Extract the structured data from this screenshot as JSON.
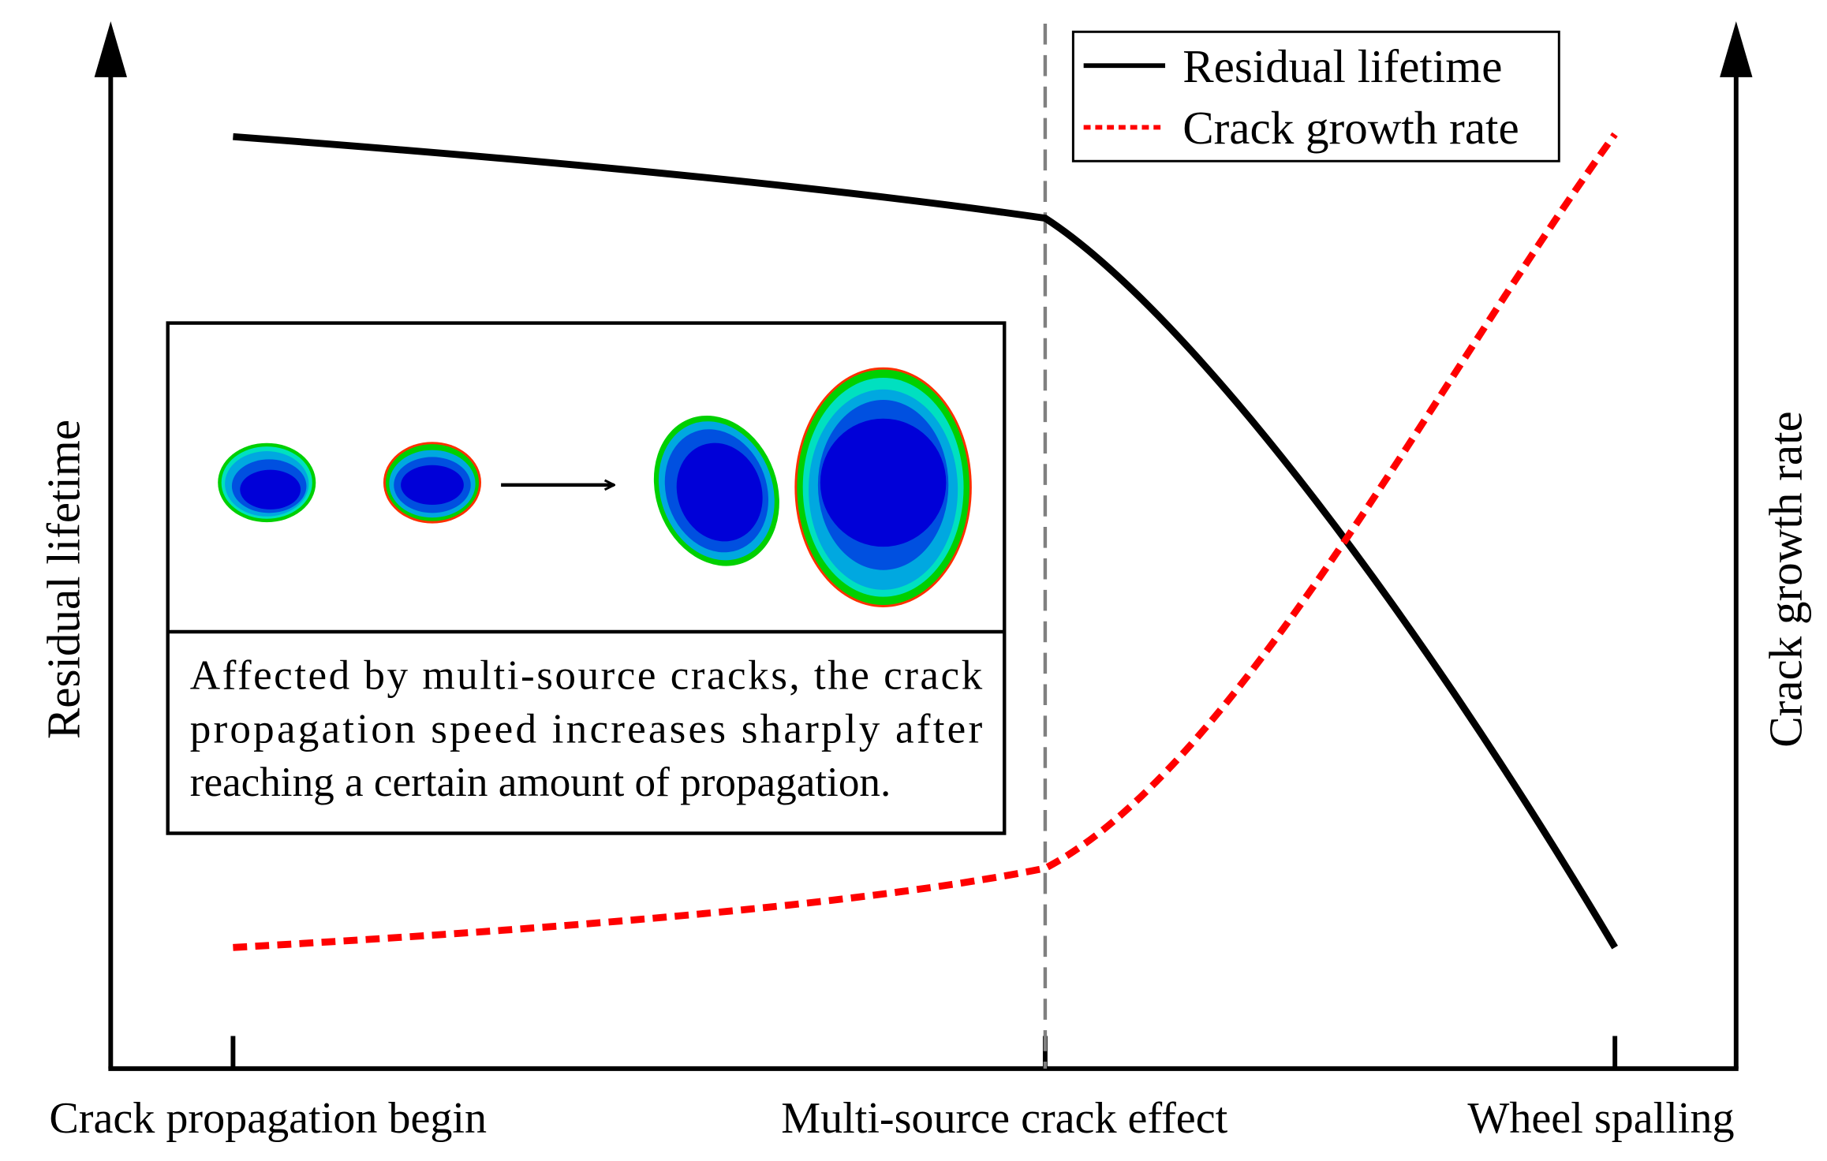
{
  "axes": {
    "left_label": "Residual lifetime",
    "right_label": "Crack growth rate",
    "x_ticks": [
      "Crack propagation begin",
      "Multi-source crack effect",
      "Wheel spalling"
    ]
  },
  "legend": {
    "items": [
      {
        "label": "Residual lifetime",
        "color": "#000000",
        "style": "solid"
      },
      {
        "label": "Crack growth rate",
        "color": "#ff0000",
        "style": "dashed"
      }
    ],
    "placement": "top-right"
  },
  "inset": {
    "caption_lines": [
      "Affected by multi-source cracks, the crack",
      "propagation speed increases sharply after",
      "reaching a certain amount of propagation."
    ]
  },
  "colors": {
    "crack_core": "#0000d8",
    "crack_mid": "#0050e0",
    "crack_outer": "#00a8e0",
    "crack_edge": "#00e0c0",
    "crack_rim": "#00d000",
    "crack_tip": "#ff3000"
  }
}
